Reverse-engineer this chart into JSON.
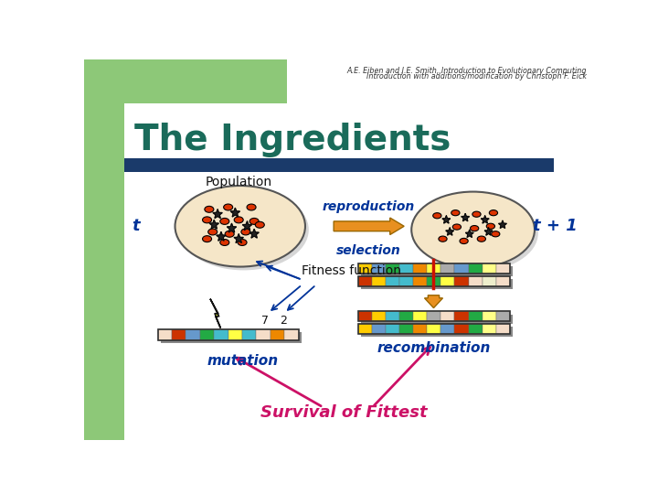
{
  "bg_color": "#ffffff",
  "left_panel_color": "#8dc878",
  "title_text": "The Ingredients",
  "title_color": "#1a6b5a",
  "header_line1": "A.E. Eiben and J.E. Smith, Introduction to Evolutionary Computing",
  "header_line2": "Introduction with additions/modification by Christoph F. Eick",
  "population_label": "Population",
  "t_label": "t",
  "t1_label": "t + 1",
  "reproduction_label": "reproduction",
  "selection_label": "selection",
  "fitness_label": "Fitness function",
  "mutation_label": "mutation",
  "recombination_label": "recombination",
  "survival_label": "Survival of Fittest",
  "num7_label": "7",
  "num2_label": "2",
  "ellipse_fill": "#f5e6c8",
  "arrow_orange": "#e89020",
  "arrow_pink": "#cc1166",
  "text_blue": "#003399",
  "bar_color": "#1a3a6a",
  "chrom_left": [
    "#f5ddc8",
    "#cc3300",
    "#6699cc",
    "#22aa44",
    "#44bbcc",
    "#ffff44",
    "#44bbcc",
    "#f5ddc8",
    "#ee8800",
    "#f5ddc8"
  ],
  "chrom_r1": [
    "#cc3300",
    "#ffcc00",
    "#44bbcc",
    "#44bbcc",
    "#ee8800",
    "#22aa44",
    "#ffff44",
    "#cc3300",
    "#f5ddc8",
    "#eeeecc",
    "#f5ddc8"
  ],
  "chrom_r2": [
    "#ffcc00",
    "#6699cc",
    "#22aa44",
    "#44bbcc",
    "#ee8800",
    "#ffff44",
    "#aaaaaa",
    "#6699cc",
    "#22aa44",
    "#ffff88",
    "#f5ddc8"
  ],
  "chrom_r3": [
    "#cc3300",
    "#ffcc00",
    "#44bbcc",
    "#22aa44",
    "#ffff44",
    "#aaaaaa",
    "#f5ddc8",
    "#cc3300",
    "#22aa44",
    "#ffff88",
    "#aaaaaa"
  ],
  "chrom_r4": [
    "#ffcc00",
    "#6699cc",
    "#44bbcc",
    "#22aa44",
    "#ee8800",
    "#ffff44",
    "#6699cc",
    "#cc3300",
    "#22aa44",
    "#ffff88",
    "#f5ddc8"
  ]
}
